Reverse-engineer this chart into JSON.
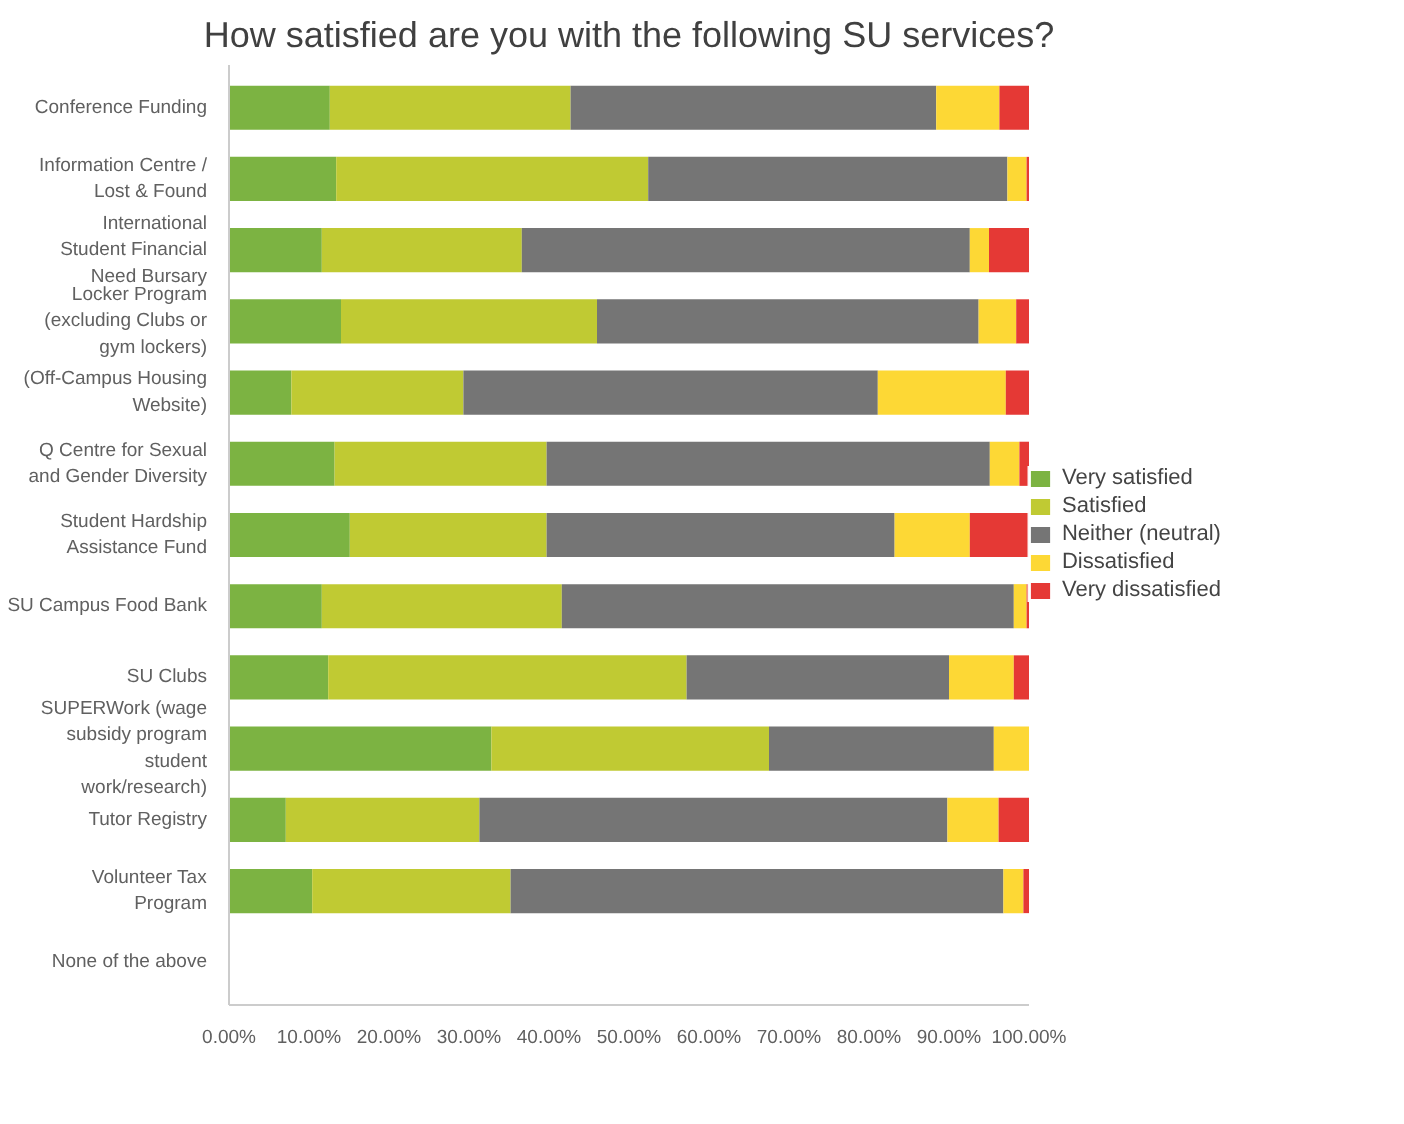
{
  "chart_data": {
    "type": "bar",
    "orientation": "horizontal",
    "stacked": true,
    "title": "How satisfied are you with the following SU services?",
    "categories": [
      "Conference Funding",
      "Information Centre / Lost & Found",
      "International Student Financial Need Bursary",
      "Locker Program (excluding Clubs or gym lockers)",
      "(Off-Campus Housing Website)",
      "Q Centre for Sexual and Gender Diversity",
      "Student Hardship Assistance Fund",
      "SU Campus Food Bank",
      "SU Clubs",
      "SUPERWork (wage subsidy program student work/research)",
      "Tutor Registry",
      "Volunteer Tax Program",
      "None of the above"
    ],
    "series": [
      {
        "name": "Very satisfied",
        "color": "#7cb342",
        "values": [
          12.6,
          13.4,
          11.6,
          14.0,
          7.8,
          13.2,
          15.1,
          11.6,
          12.4,
          32.8,
          7.1,
          10.4,
          null
        ]
      },
      {
        "name": "Satisfied",
        "color": "#c0ca33",
        "values": [
          30.1,
          39.0,
          25.0,
          32.0,
          21.5,
          26.5,
          24.6,
          30.0,
          44.8,
          34.7,
          24.2,
          24.8,
          null
        ]
      },
      {
        "name": "Neither (neutral)",
        "color": "#757575",
        "values": [
          45.7,
          44.9,
          56.0,
          47.7,
          51.8,
          55.4,
          43.5,
          56.5,
          32.8,
          28.1,
          58.5,
          61.6,
          null
        ]
      },
      {
        "name": "Dissatisfied",
        "color": "#fdd835",
        "values": [
          7.9,
          2.4,
          2.4,
          4.7,
          16.0,
          3.7,
          9.4,
          1.6,
          8.1,
          4.4,
          6.4,
          2.5,
          null
        ]
      },
      {
        "name": "Very dissatisfied",
        "color": "#e53935",
        "values": [
          3.7,
          0.3,
          5.0,
          1.6,
          2.9,
          1.2,
          7.4,
          0.3,
          1.9,
          0.0,
          3.8,
          0.7,
          null
        ]
      }
    ],
    "xlim": [
      0,
      100
    ],
    "xticks": [
      {
        "value": 0,
        "label": "0.00%"
      },
      {
        "value": 10,
        "label": "10.00%"
      },
      {
        "value": 20,
        "label": "20.00%"
      },
      {
        "value": 30,
        "label": "30.00%"
      },
      {
        "value": 40,
        "label": "40.00%"
      },
      {
        "value": 50,
        "label": "50.00%"
      },
      {
        "value": 60,
        "label": "60.00%"
      },
      {
        "value": 70,
        "label": "70.00%"
      },
      {
        "value": 80,
        "label": "80.00%"
      },
      {
        "value": 90,
        "label": "90.00%"
      },
      {
        "value": 100,
        "label": "100.00%"
      }
    ],
    "grid": false,
    "legend": "right"
  }
}
